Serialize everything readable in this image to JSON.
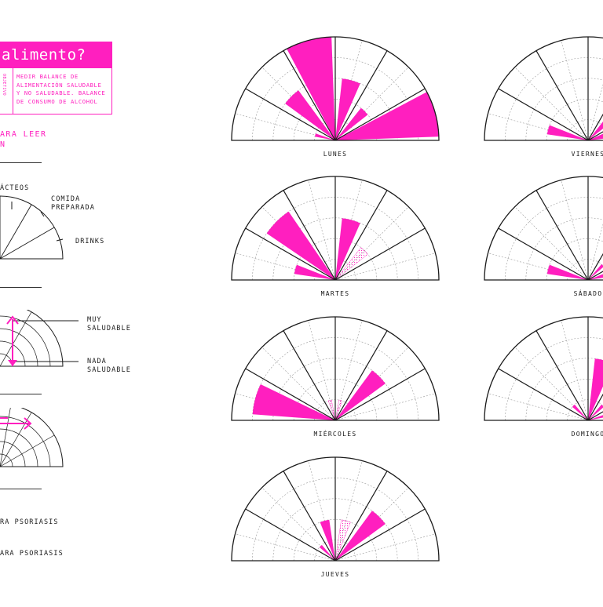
{
  "header": {
    "title": "alimento?",
    "vertical_label": "OBJETIVO",
    "objective_text": "MEDIR BALANCE DE\nALIMENTACIÓN SALUDABLE\nY NO SALUDABLE. BALANCE\nDE CONSUMO DE ALCOHOL"
  },
  "guide": {
    "title": "ARA LEER\nN",
    "category_labels": [
      "ÁCTEOS",
      "COMIDA\nPREPARADA",
      "DRINKS"
    ],
    "scale_labels": [
      "MUY\nSALUDABLE",
      "NADA\nSALUDABLE"
    ],
    "footer_lines": [
      "RA PSORIASIS",
      "ARA PSORIASIS"
    ]
  },
  "colors": {
    "accent": "#ff1fbf",
    "ink": "#1a1a1a",
    "grid": "#9a9a9a"
  },
  "chart_data": {
    "type": "polar-area",
    "sectors_per_chart": 6,
    "scale_rings": 5,
    "charts": [
      {
        "day": "LUNES",
        "wedges": [
          {
            "sector": 0,
            "level": 1,
            "style": "solid"
          },
          {
            "sector": 1,
            "level": 1,
            "style": "solid"
          },
          {
            "sector": 1,
            "level": 3,
            "style": "solid"
          },
          {
            "sector": 2,
            "level": 5,
            "style": "solid"
          },
          {
            "sector": 3,
            "level": 3,
            "style": "solid"
          },
          {
            "sector": 4,
            "level": 2,
            "style": "solid"
          },
          {
            "sector": 5,
            "level": 5,
            "style": "solid"
          }
        ]
      },
      {
        "day": "VIERNES",
        "wedges": [
          {
            "sector": 0,
            "level": 2,
            "style": "solid"
          },
          {
            "sector": 4,
            "level": 2,
            "style": "solid"
          },
          {
            "sector": 5,
            "level": 3,
            "style": "solid"
          }
        ]
      },
      {
        "day": "MARTES",
        "wedges": [
          {
            "sector": 0,
            "level": 2,
            "style": "solid"
          },
          {
            "sector": 1,
            "level": 4,
            "style": "solid"
          },
          {
            "sector": 3,
            "level": 3,
            "style": "solid"
          },
          {
            "sector": 4,
            "level": 2,
            "style": "dotted"
          }
        ]
      },
      {
        "day": "SÁBADO",
        "wedges": [
          {
            "sector": 0,
            "level": 2,
            "style": "solid"
          },
          {
            "sector": 4,
            "level": 1,
            "style": "solid"
          },
          {
            "sector": 5,
            "level": 2,
            "style": "solid"
          }
        ]
      },
      {
        "day": "MIÉRCOLES",
        "wedges": [
          {
            "sector": 0,
            "level": 4,
            "style": "solid"
          },
          {
            "sector": 2,
            "level": 1,
            "style": "dotted"
          },
          {
            "sector": 3,
            "level": 1,
            "style": "dotted"
          },
          {
            "sector": 4,
            "level": 3,
            "style": "solid"
          }
        ]
      },
      {
        "day": "DOMINGO",
        "wedges": [
          {
            "sector": 1,
            "level": 1,
            "style": "solid"
          },
          {
            "sector": 3,
            "level": 3,
            "style": "solid"
          },
          {
            "sector": 4,
            "level": 1,
            "style": "solid"
          },
          {
            "sector": 5,
            "level": 1,
            "style": "solid"
          }
        ]
      },
      {
        "day": "JUEVES",
        "wedges": [
          {
            "sector": 1,
            "level": 1,
            "style": "solid"
          },
          {
            "sector": 2,
            "level": 2,
            "style": "solid"
          },
          {
            "sector": 3,
            "level": 2,
            "style": "dotted"
          },
          {
            "sector": 4,
            "level": 3,
            "style": "solid"
          }
        ]
      }
    ]
  }
}
